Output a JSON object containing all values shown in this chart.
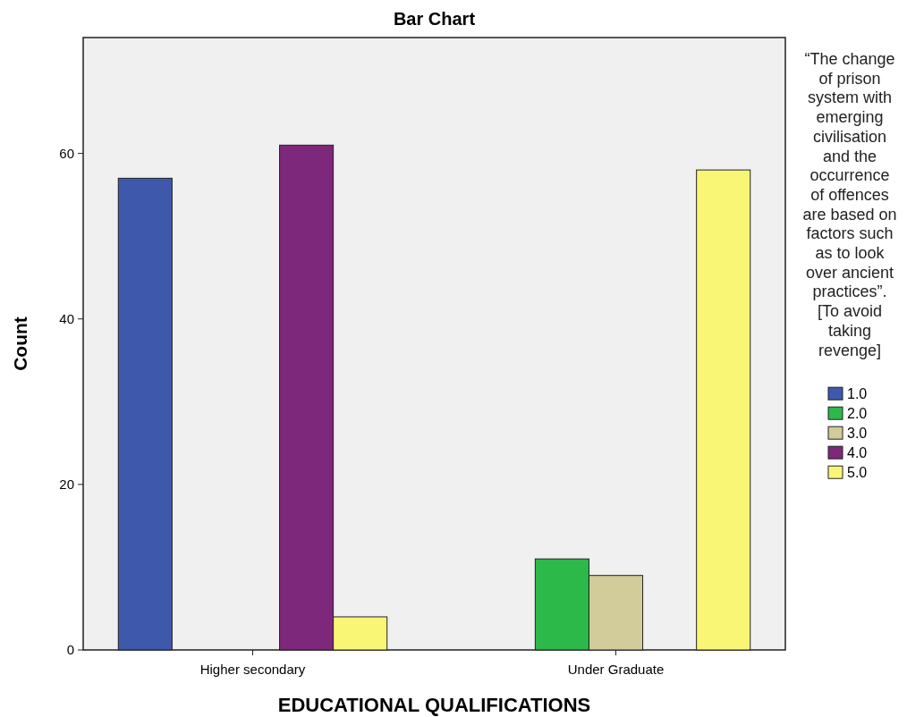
{
  "chart_data": {
    "type": "bar",
    "title": "Bar Chart",
    "xlabel": "EDUCATIONAL QUALIFICATIONS",
    "ylabel": "Count",
    "legend_title": "“The change of prison system with emerging civilisation and the occurrence of offences are based on factors such as to look over ancient practices”. [To avoid taking revenge]",
    "categories": [
      "Higher secondary",
      "Under Graduate"
    ],
    "series": [
      {
        "name": "1.0",
        "color": "#3e58ac",
        "values": [
          57,
          null
        ]
      },
      {
        "name": "2.0",
        "color": "#2db84a",
        "values": [
          null,
          11
        ]
      },
      {
        "name": "3.0",
        "color": "#d2cc9a",
        "values": [
          null,
          9
        ]
      },
      {
        "name": "4.0",
        "color": "#7d287a",
        "values": [
          61,
          null
        ]
      },
      {
        "name": "5.0",
        "color": "#faf675",
        "values": [
          4,
          58
        ]
      }
    ],
    "ylim": [
      0,
      74
    ],
    "yticks": [
      0,
      20,
      40,
      60
    ],
    "grid": false,
    "legend": "right"
  }
}
